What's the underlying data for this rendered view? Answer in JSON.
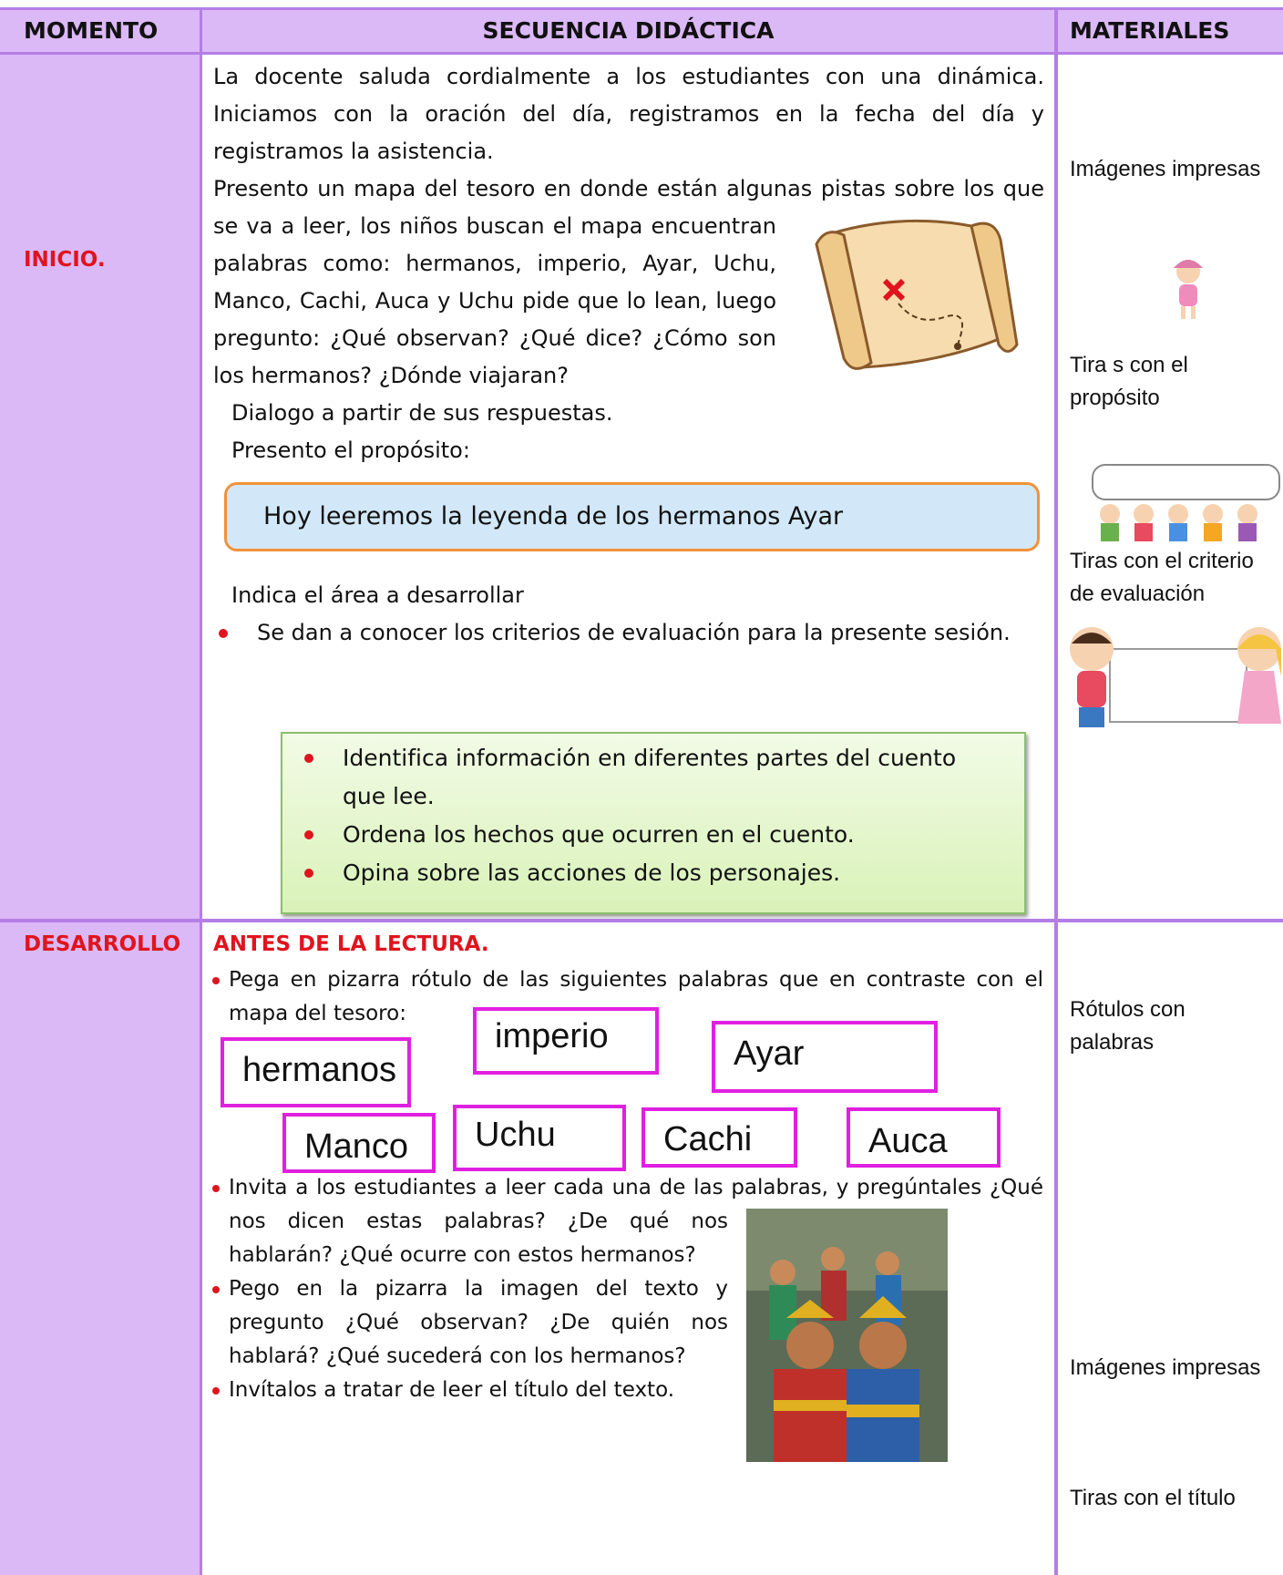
{
  "header": {
    "moment": "MOMENTO",
    "sequence": "SECUENCIA DIDÁCTICA",
    "materials": "MATERIALES"
  },
  "inicio": {
    "moment": "INICIO.",
    "paragraphs": [
      "La docente saluda cordialmente a los estudiantes con una dinámica. Iniciamos con la oración del día, registramos en la fecha del día y registramos la asistencia.",
      "Presento un mapa del tesoro en donde están algunas pistas sobre los que se va a leer, los niños buscan el mapa encuentran palabras como: hermanos, imperio, Ayar, Uchu, Manco, Cachi, Auca y Uchu  pide que lo lean, luego pregunto: ¿Qué observan? ¿Qué dice? ¿Cómo son los hermanos? ¿Dónde viajaran?",
      "Dialogo a partir de sus respuestas.",
      "Presento el propósito:"
    ],
    "purpose": "Hoy leeremos la leyenda de los hermanos Ayar",
    "area": "Indica el área a desarrollar",
    "bullet": "Se dan a conocer los criterios de evaluación para la presente sesión.",
    "criteria": [
      "Identifica información en diferentes partes del cuento que lee.",
      "Ordena los hechos que ocurren en el cuento.",
      "Opina sobre las acciones de los personajes."
    ],
    "materials": [
      "Imágenes impresas",
      "Tira s con el propósito",
      "Tiras con el criterio de evaluación"
    ]
  },
  "desarrollo": {
    "moment": "DESARROLLO",
    "heading": "ANTES DE LA LECTURA.",
    "bullets": [
      "Pega en pizarra rótulo de las siguientes palabras que en contraste con el mapa del tesoro:",
      "Invita a los estudiantes a leer cada una de las palabras, y pregúntales ¿Qué nos dicen estas palabras? ¿De qué nos hablarán? ¿Qué ocurre con estos hermanos?",
      "Pego en la pizarra la imagen del texto y pregunto ¿Qué observan? ¿De quién nos hablará? ¿Qué sucederá con los hermanos?",
      "Invítalos a tratar de leer el título del texto."
    ],
    "words": [
      "hermanos",
      "imperio",
      "Ayar",
      "Manco",
      "Uchu",
      "Cachi",
      "Auca"
    ],
    "materials": [
      "Rótulos con palabras",
      "Imágenes impresas",
      "Tiras con el título"
    ]
  }
}
